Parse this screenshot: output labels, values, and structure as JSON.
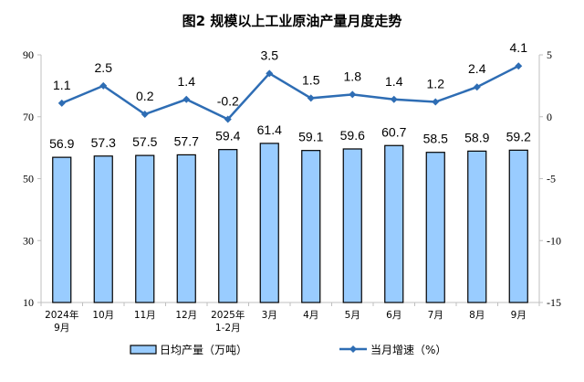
{
  "chart_data": {
    "type": "bar+line",
    "title": "图2  规模以上工业原油产量月度走势",
    "categories": [
      [
        "2024年",
        "9月"
      ],
      [
        "10月"
      ],
      [
        "11月"
      ],
      [
        "12月"
      ],
      [
        "2025年",
        "1-2月"
      ],
      [
        "3月"
      ],
      [
        "4月"
      ],
      [
        "5月"
      ],
      [
        "6月"
      ],
      [
        "7月"
      ],
      [
        "8月"
      ],
      [
        "9月"
      ]
    ],
    "series": [
      {
        "name": "日均产量（万吨）",
        "type": "bar",
        "axis": "left",
        "color": "#99ccff",
        "values": [
          56.9,
          57.3,
          57.5,
          57.7,
          59.4,
          61.4,
          59.1,
          59.6,
          60.7,
          58.5,
          58.9,
          59.2
        ]
      },
      {
        "name": "当月增速（%）",
        "type": "line",
        "axis": "right",
        "color": "#2e6db4",
        "values": [
          1.1,
          2.5,
          0.2,
          1.4,
          -0.2,
          3.5,
          1.5,
          1.8,
          1.4,
          1.2,
          2.4,
          4.1
        ]
      }
    ],
    "left_axis": {
      "range": [
        10,
        90
      ],
      "ticks": [
        10,
        30,
        50,
        70,
        90
      ]
    },
    "right_axis": {
      "range": [
        -15,
        5
      ],
      "ticks": [
        5,
        0,
        -5,
        -10,
        -15
      ]
    },
    "grid": false,
    "legend": "bottom"
  }
}
